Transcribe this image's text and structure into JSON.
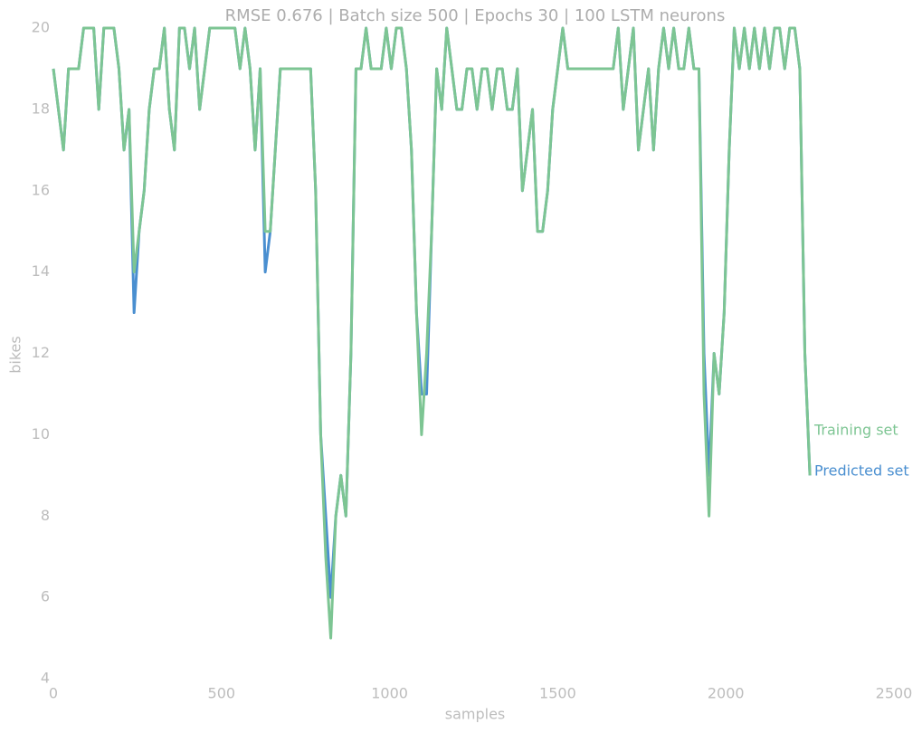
{
  "chart_data": {
    "type": "line",
    "title": "RMSE 0.676 | Batch size 500 | Epochs 30 |  100 LSTM neurons",
    "xlabel": "samples",
    "ylabel": "bikes",
    "x": [
      0,
      15,
      30,
      45,
      60,
      75,
      90,
      105,
      120,
      135,
      150,
      165,
      180,
      195,
      210,
      225,
      240,
      255,
      270,
      285,
      300,
      315,
      330,
      345,
      360,
      375,
      390,
      405,
      420,
      435,
      450,
      465,
      480,
      495,
      510,
      525,
      540,
      555,
      570,
      585,
      600,
      615,
      630,
      645,
      660,
      675,
      690,
      705,
      720,
      735,
      750,
      765,
      780,
      795,
      810,
      825,
      840,
      855,
      870,
      885,
      900,
      915,
      930,
      945,
      960,
      975,
      990,
      1005,
      1020,
      1035,
      1050,
      1065,
      1080,
      1095,
      1110,
      1125,
      1140,
      1155,
      1170,
      1185,
      1200,
      1215,
      1230,
      1245,
      1260,
      1275,
      1290,
      1305,
      1320,
      1335,
      1350,
      1365,
      1380,
      1395,
      1410,
      1425,
      1440,
      1455,
      1470,
      1485,
      1500,
      1515,
      1530,
      1545,
      1560,
      1575,
      1590,
      1605,
      1620,
      1635,
      1650,
      1665,
      1680,
      1695,
      1710,
      1725,
      1740,
      1755,
      1770,
      1785,
      1800,
      1815,
      1830,
      1845,
      1860,
      1875,
      1890,
      1905,
      1920,
      1935,
      1950,
      1965,
      1980,
      1995,
      2010,
      2025,
      2040,
      2055,
      2070,
      2085,
      2100,
      2115,
      2130,
      2145,
      2160,
      2175,
      2190,
      2205,
      2220,
      2235,
      2250
    ],
    "series": [
      {
        "name": "Predicted set",
        "color": "#4a8fd0",
        "values": [
          19,
          18,
          17,
          19,
          19,
          19,
          20,
          20,
          20,
          18,
          20,
          20,
          20,
          19,
          17,
          18,
          13,
          15,
          16,
          18,
          19,
          19,
          20,
          18,
          17,
          20,
          20,
          19,
          20,
          18,
          19,
          20,
          20,
          20,
          20,
          20,
          20,
          19,
          20,
          19,
          17,
          19,
          14,
          15,
          17,
          19,
          19,
          19,
          19,
          19,
          19,
          19,
          16,
          10,
          8,
          6,
          8,
          9,
          8,
          12,
          19,
          19,
          20,
          19,
          19,
          19,
          20,
          19,
          20,
          20,
          19,
          17,
          13,
          11,
          11,
          15,
          19,
          18,
          20,
          19,
          18,
          18,
          19,
          19,
          18,
          19,
          19,
          18,
          19,
          19,
          18,
          18,
          19,
          16,
          17,
          18,
          15,
          15,
          16,
          18,
          19,
          20,
          19,
          19,
          19,
          19,
          19,
          19,
          19,
          19,
          19,
          19,
          20,
          18,
          19,
          20,
          17,
          18,
          19,
          17,
          19,
          20,
          19,
          20,
          19,
          19,
          20,
          19,
          19,
          12,
          9,
          12,
          11,
          13,
          17,
          20,
          19,
          20,
          19,
          20,
          19,
          20,
          19,
          20,
          20,
          19,
          20,
          20,
          19,
          12,
          9
        ]
      },
      {
        "name": "Training set",
        "color": "#7dc593",
        "values": [
          19,
          18,
          17,
          19,
          19,
          19,
          20,
          20,
          20,
          18,
          20,
          20,
          20,
          19,
          17,
          18,
          14,
          15,
          16,
          18,
          19,
          19,
          20,
          18,
          17,
          20,
          20,
          19,
          20,
          18,
          19,
          20,
          20,
          20,
          20,
          20,
          20,
          19,
          20,
          19,
          17,
          19,
          15,
          15,
          17,
          19,
          19,
          19,
          19,
          19,
          19,
          19,
          16,
          10,
          7,
          5,
          8,
          9,
          8,
          12,
          19,
          19,
          20,
          19,
          19,
          19,
          20,
          19,
          20,
          20,
          19,
          17,
          13,
          10,
          12,
          15,
          19,
          18,
          20,
          19,
          18,
          18,
          19,
          19,
          18,
          19,
          19,
          18,
          19,
          19,
          18,
          18,
          19,
          16,
          17,
          18,
          15,
          15,
          16,
          18,
          19,
          20,
          19,
          19,
          19,
          19,
          19,
          19,
          19,
          19,
          19,
          19,
          20,
          18,
          19,
          20,
          17,
          18,
          19,
          17,
          19,
          20,
          19,
          20,
          19,
          19,
          20,
          19,
          19,
          11,
          8,
          12,
          11,
          13,
          17,
          20,
          19,
          20,
          19,
          20,
          19,
          20,
          19,
          20,
          20,
          19,
          20,
          20,
          19,
          12,
          9
        ]
      }
    ],
    "xlim": [
      0,
      2500
    ],
    "xticks": [
      0,
      500,
      1000,
      1500,
      2000,
      2500
    ],
    "ylim": [
      4,
      20
    ],
    "yticks": [
      4,
      6,
      8,
      10,
      12,
      14,
      16,
      18,
      20
    ]
  }
}
